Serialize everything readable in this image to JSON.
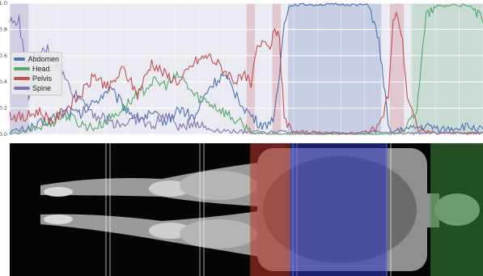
{
  "chart_data": {
    "type": "line",
    "title": "",
    "xlabel": "",
    "ylabel": "",
    "ylim": [
      0.0,
      1.0
    ],
    "xlim": [
      0,
      100
    ],
    "y_ticks": [
      "0.0",
      "0.2",
      "0.4",
      "0.6",
      "0.8",
      "1.0"
    ],
    "grid": true,
    "legend_position": "left",
    "series": [
      {
        "name": "Abdomen",
        "color": "#4c72b0",
        "x": [
          0,
          3,
          6,
          9,
          12,
          15,
          18,
          21,
          24,
          27,
          30,
          33,
          36,
          39,
          42,
          45,
          48,
          50,
          52,
          54,
          56,
          57,
          58,
          59,
          60,
          62,
          66,
          70,
          74,
          76,
          78,
          79,
          80,
          81,
          82,
          84,
          86,
          88,
          90,
          92,
          94,
          96,
          98,
          100
        ],
        "y": [
          0.02,
          0.04,
          0.07,
          0.12,
          0.18,
          0.15,
          0.25,
          0.35,
          0.22,
          0.12,
          0.15,
          0.1,
          0.2,
          0.12,
          0.35,
          0.45,
          0.3,
          0.18,
          0.1,
          0.06,
          0.15,
          0.45,
          0.88,
          0.97,
          0.99,
          0.99,
          0.99,
          0.99,
          0.99,
          0.98,
          0.7,
          0.4,
          0.05,
          0.02,
          0.03,
          0.04,
          0.05,
          0.06,
          0.05,
          0.04,
          0.05,
          0.06,
          0.05,
          0.04
        ]
      },
      {
        "name": "Head",
        "color": "#55a868",
        "x": [
          0,
          3,
          6,
          9,
          12,
          15,
          18,
          21,
          24,
          27,
          30,
          33,
          36,
          39,
          42,
          45,
          48,
          50,
          52,
          54,
          56,
          58,
          60,
          66,
          70,
          74,
          78,
          80,
          82,
          84,
          86,
          88,
          90,
          92,
          94,
          96,
          98,
          100
        ],
        "y": [
          0.0,
          0.02,
          0.05,
          0.1,
          0.15,
          0.08,
          0.05,
          0.12,
          0.2,
          0.3,
          0.4,
          0.38,
          0.45,
          0.3,
          0.25,
          0.18,
          0.1,
          0.05,
          0.02,
          0.01,
          0.0,
          0.0,
          0.0,
          0.0,
          0.0,
          0.0,
          0.0,
          0.0,
          0.02,
          0.05,
          0.2,
          0.9,
          0.97,
          0.98,
          0.99,
          0.98,
          0.96,
          0.85
        ]
      },
      {
        "name": "Pelvis",
        "color": "#c44e52",
        "x": [
          0,
          3,
          6,
          9,
          12,
          15,
          18,
          21,
          24,
          27,
          30,
          33,
          36,
          39,
          42,
          45,
          48,
          50,
          51,
          52,
          53,
          54,
          55,
          56,
          57,
          58,
          60,
          66,
          70,
          74,
          78,
          80,
          81,
          82,
          83,
          84,
          86,
          88,
          90,
          94,
          98,
          100
        ],
        "y": [
          0.15,
          0.12,
          0.18,
          0.1,
          0.2,
          0.3,
          0.45,
          0.35,
          0.5,
          0.3,
          0.55,
          0.45,
          0.4,
          0.55,
          0.6,
          0.5,
          0.4,
          0.45,
          0.35,
          0.62,
          0.7,
          0.75,
          0.65,
          0.85,
          0.7,
          0.1,
          0.02,
          0.01,
          0.01,
          0.01,
          0.05,
          0.3,
          0.85,
          0.92,
          0.7,
          0.3,
          0.05,
          0.02,
          0.01,
          0.01,
          0.01,
          0.01
        ]
      },
      {
        "name": "Spine",
        "color": "#8172b2",
        "x": [
          0,
          2,
          4,
          6,
          8,
          10,
          12,
          14,
          16,
          18,
          21,
          24,
          27,
          30,
          33,
          36,
          39,
          42,
          45,
          48,
          50,
          52,
          54,
          56,
          58,
          60,
          66,
          70,
          74,
          78,
          80,
          82,
          84,
          86,
          88,
          90,
          94,
          98,
          100
        ],
        "y": [
          0.85,
          0.88,
          0.3,
          0.6,
          0.65,
          0.55,
          0.4,
          0.3,
          0.25,
          0.15,
          0.1,
          0.08,
          0.12,
          0.06,
          0.15,
          0.05,
          0.1,
          0.04,
          0.03,
          0.02,
          0.02,
          0.01,
          0.01,
          0.02,
          0.02,
          0.01,
          0.01,
          0.01,
          0.01,
          0.02,
          0.01,
          0.01,
          0.01,
          0.01,
          0.01,
          0.01,
          0.01,
          0.01,
          0.01
        ]
      }
    ],
    "highlight_bands": [
      {
        "label": "Spine",
        "x_start": 0,
        "x_end": 4,
        "color": "#8172b2"
      },
      {
        "label": "Pelvis",
        "x_start": 50,
        "x_end": 51.8,
        "color": "#c44e52"
      },
      {
        "label": "Pelvis",
        "x_start": 55.5,
        "x_end": 57.3,
        "color": "#c44e52"
      },
      {
        "label": "Abdomen",
        "x_start": 58.8,
        "x_end": 78.5,
        "color": "#4c72b0"
      },
      {
        "label": "Pelvis",
        "x_start": 80.3,
        "x_end": 83.3,
        "color": "#c44e52"
      },
      {
        "label": "Head",
        "x_start": 84.8,
        "x_end": 100,
        "color": "#55a868"
      }
    ]
  },
  "legend": {
    "items": [
      {
        "label": "Abdomen",
        "color": "#4c72b0"
      },
      {
        "label": "Head",
        "color": "#55a868"
      },
      {
        "label": "Pelvis",
        "color": "#c44e52"
      },
      {
        "label": "Spine",
        "color": "#8172b2"
      }
    ]
  },
  "scan_image": {
    "description_regions": [
      {
        "label": "Pelvis",
        "x_start": 50.8,
        "x_end": 59.2,
        "color": "#c0392b"
      },
      {
        "label": "Abdomen",
        "x_start": 59.2,
        "x_end": 79.8,
        "color": "#2c3ac8"
      },
      {
        "label": "Head",
        "x_start": 88.9,
        "x_end": 100,
        "color": "#3a8a3a"
      }
    ]
  }
}
